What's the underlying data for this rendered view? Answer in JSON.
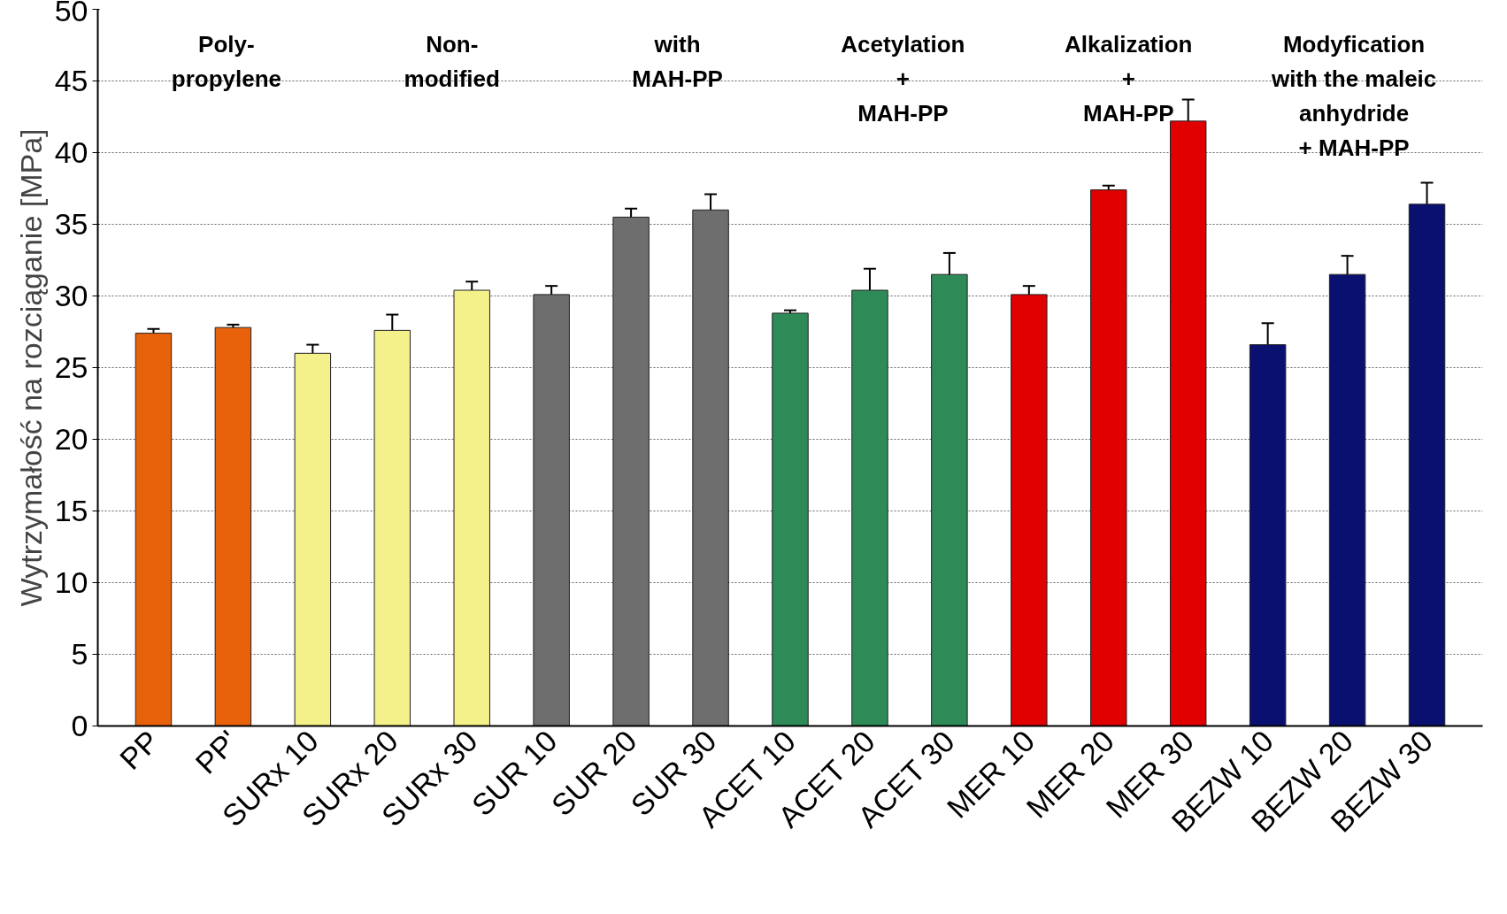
{
  "chart_data": {
    "type": "bar",
    "ylabel": "Wytrzymałość na rozciąganie [MPa]",
    "categories": [
      "PP",
      "PP'",
      "SURx 10",
      "SURx 20",
      "SURx 30",
      "SUR 10",
      "SUR 20",
      "SUR 30",
      "ACET 10",
      "ACET 20",
      "ACET 30",
      "MER 10",
      "MER 20",
      "MER 30",
      "BEZW 10",
      "BEZW 20",
      "BEZW 30"
    ],
    "values": [
      27.4,
      27.8,
      26.0,
      27.6,
      30.4,
      30.1,
      35.5,
      36.0,
      28.8,
      30.4,
      31.5,
      30.1,
      37.4,
      42.2,
      26.6,
      31.5,
      36.4
    ],
    "errors": [
      0.3,
      0.2,
      0.6,
      1.1,
      0.6,
      0.6,
      0.6,
      1.1,
      0.2,
      1.5,
      1.5,
      0.6,
      0.3,
      1.5,
      1.5,
      1.3,
      1.5
    ],
    "colors": [
      "#e8620c",
      "#e8620c",
      "#f4f08a",
      "#f4f08a",
      "#f4f08a",
      "#6e6e6e",
      "#6e6e6e",
      "#6e6e6e",
      "#2e8b57",
      "#2e8b57",
      "#2e8b57",
      "#e00000",
      "#e00000",
      "#e00000",
      "#0a1070",
      "#0a1070",
      "#0a1070"
    ],
    "ylim": [
      0,
      50
    ],
    "yticks": [
      0,
      5,
      10,
      15,
      20,
      25,
      30,
      35,
      40,
      45,
      50
    ],
    "grid": "y",
    "annotations": [
      "Poly-\npropylene",
      "Non-\nmodified",
      "with\nMAH-PP",
      "Acetylation\n+\nMAH-PP",
      "Alkalization\n+\nMAH-PP",
      "Modyfication\nwith the maleic\nanhydride\n+ MAH-PP"
    ]
  }
}
